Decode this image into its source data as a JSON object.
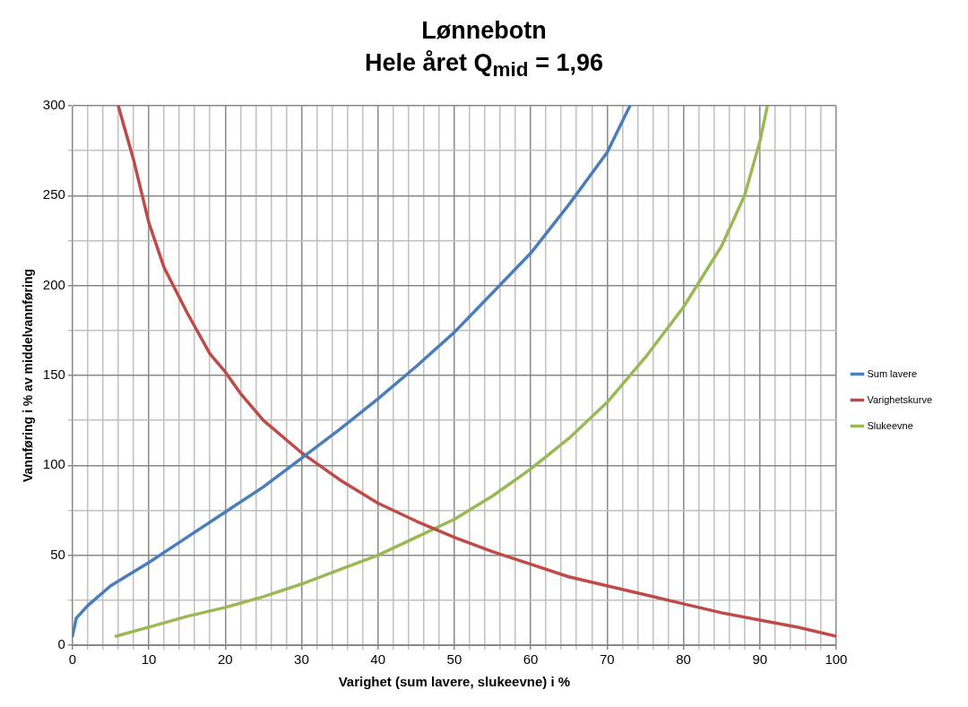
{
  "chart_data": {
    "type": "line",
    "title": "Lønnebotn",
    "subtitle": "Hele året Q$_{mid}$ = 1,96",
    "xlabel": "Varighet (sum lavere, slukeevne) i %",
    "ylabel": "Vannføring i % av middelvannføring",
    "xlim": [
      0,
      100
    ],
    "xticks": [
      0,
      {
        "value": 2,
        "label": null
      },
      {
        "value": 4,
        "label": null
      },
      {
        "value": 6,
        "label": null
      },
      {
        "value": 8,
        "label": null
      },
      10,
      {
        "value": 12,
        "label": null
      },
      {
        "value": 14,
        "label": null
      },
      {
        "value": 16,
        "label": null
      },
      {
        "value": 18,
        "label": null
      },
      20,
      {
        "value": 22,
        "label": null
      },
      {
        "value": 24,
        "label": null
      },
      {
        "value": 26,
        "label": null
      },
      {
        "value": 28,
        "label": null
      },
      30,
      {
        "value": 32,
        "label": null
      },
      {
        "value": 34,
        "label": null
      },
      {
        "value": 36,
        "label": null
      },
      {
        "value": 38,
        "label": null
      },
      40,
      {
        "value": 42,
        "label": null
      },
      {
        "value": 44,
        "label": null
      },
      {
        "value": 46,
        "label": null
      },
      {
        "value": 48,
        "label": null
      },
      50,
      {
        "value": 52,
        "label": null
      },
      {
        "value": 54,
        "label": null
      },
      {
        "value": 56,
        "label": null
      },
      {
        "value": 58,
        "label": null
      },
      60,
      {
        "value": 62,
        "label": null
      },
      {
        "value": 64,
        "label": null
      },
      {
        "value": 66,
        "label": null
      },
      {
        "value": 68,
        "label": null
      },
      70,
      {
        "value": 72,
        "label": null
      },
      {
        "value": 74,
        "label": null
      },
      {
        "value": 76,
        "label": null
      },
      {
        "value": 78,
        "label": null
      },
      80,
      {
        "value": 82,
        "label": null
      },
      {
        "value": 84,
        "label": null
      },
      {
        "value": 86,
        "label": null
      },
      {
        "value": 88,
        "label": null
      },
      90,
      {
        "value": 92,
        "label": null
      },
      {
        "value": 94,
        "label": null
      },
      {
        "value": 96,
        "label": null
      },
      {
        "value": 98,
        "label": null
      },
      100
    ],
    "ylim": [
      0,
      300
    ],
    "yticks": [
      0,
      {
        "value": 25,
        "label": null
      },
      50,
      {
        "value": 75,
        "label": null
      },
      100,
      {
        "value": 125,
        "label": null
      },
      150,
      {
        "value": 175,
        "label": null
      },
      200,
      {
        "value": 225,
        "label": null
      },
      250,
      {
        "value": 275,
        "label": null
      },
      300
    ],
    "grid": true,
    "legend": "right",
    "marker": "none",
    "line_style": "solid",
    "series": [
      {
        "name": "Sum lavere",
        "color": "#4a7ebb",
        "x": [
          0,
          0.5,
          2,
          5,
          10,
          15,
          20,
          25,
          30,
          35,
          40,
          45,
          50,
          55,
          60,
          65,
          70,
          73
        ],
        "values": [
          5,
          15,
          22,
          33,
          46,
          60,
          74,
          88,
          104,
          120,
          137,
          155,
          174,
          196,
          218,
          245,
          274,
          300
        ]
      },
      {
        "name": "Varighetskurve",
        "color": "#be4b48",
        "x": [
          6,
          8,
          10,
          12,
          15,
          18,
          20,
          22,
          25,
          30,
          35,
          40,
          45,
          50,
          55,
          60,
          65,
          70,
          75,
          80,
          85,
          90,
          95,
          100
        ],
        "values": [
          300,
          270,
          235,
          210,
          185,
          162,
          152,
          140,
          125,
          107,
          92,
          79,
          69,
          60,
          52,
          45,
          38,
          33,
          28,
          23,
          18,
          14,
          10,
          5
        ]
      },
      {
        "name": "Slukeevne",
        "color": "#98b954",
        "x": [
          5.7,
          10,
          15,
          20,
          25,
          30,
          35,
          40,
          45,
          50,
          55,
          60,
          65,
          70,
          75,
          80,
          85,
          88,
          90,
          91
        ],
        "values": [
          5,
          10,
          16,
          21,
          27,
          34,
          42,
          50,
          60,
          70,
          83,
          98,
          115,
          135,
          160,
          188,
          222,
          250,
          280,
          300
        ]
      }
    ]
  }
}
